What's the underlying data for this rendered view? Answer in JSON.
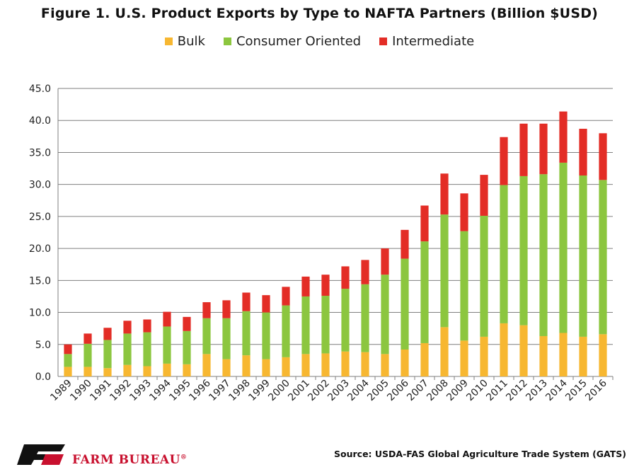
{
  "colors": {
    "bulk": "#f7b731",
    "consumer": "#8cc63f",
    "intermediate": "#e32d26",
    "axis": "#7f7f7f",
    "grid": "#7f7f7f"
  },
  "source": "Source: USDA-FAS Global Agriculture Trade System (GATS)",
  "logo": {
    "text": "FARM BUREAU",
    "mark": "®"
  },
  "chart_data": {
    "type": "bar",
    "stacked": true,
    "title": "Figure 1. U.S. Product Exports by Type to NAFTA Partners (Billion $USD)",
    "xlabel": "",
    "ylabel": "",
    "ylim": [
      0,
      45
    ],
    "yticks": [
      "0.0",
      "5.0",
      "10.0",
      "15.0",
      "20.0",
      "25.0",
      "30.0",
      "35.0",
      "40.0",
      "45.0"
    ],
    "grid": true,
    "legend_position": "top",
    "categories": [
      "1989",
      "1990",
      "1991",
      "1992",
      "1993",
      "1994",
      "1995",
      "1996",
      "1997",
      "1998",
      "1999",
      "2000",
      "2001",
      "2002",
      "2003",
      "2004",
      "2005",
      "2006",
      "2007",
      "2008",
      "2009",
      "2010",
      "2011",
      "2012",
      "2013",
      "2014",
      "2015",
      "2016"
    ],
    "series": [
      {
        "name": "Bulk",
        "color_key": "bulk",
        "values": [
          1.5,
          1.5,
          1.3,
          1.8,
          1.6,
          2.0,
          1.9,
          3.5,
          2.7,
          3.3,
          2.7,
          3.0,
          3.5,
          3.6,
          3.9,
          3.8,
          3.5,
          4.2,
          5.2,
          7.7,
          5.6,
          6.2,
          8.3,
          8.0,
          6.3,
          6.8,
          6.2,
          6.6
        ]
      },
      {
        "name": "Consumer Oriented",
        "color_key": "consumer",
        "values": [
          2.0,
          3.6,
          4.4,
          4.9,
          5.3,
          5.8,
          5.2,
          5.6,
          6.4,
          6.9,
          7.3,
          8.1,
          9.0,
          9.0,
          9.8,
          10.6,
          12.4,
          14.2,
          15.9,
          17.6,
          17.1,
          18.9,
          21.6,
          23.3,
          25.3,
          26.6,
          25.2,
          24.1
        ]
      },
      {
        "name": "Intermediate",
        "color_key": "intermediate",
        "values": [
          1.5,
          1.6,
          1.9,
          2.0,
          2.0,
          2.3,
          2.2,
          2.5,
          2.8,
          2.9,
          2.7,
          2.9,
          3.1,
          3.3,
          3.5,
          3.8,
          4.1,
          4.5,
          5.6,
          6.4,
          5.9,
          6.4,
          7.5,
          8.2,
          7.9,
          8.0,
          7.3,
          7.3
        ]
      }
    ]
  }
}
